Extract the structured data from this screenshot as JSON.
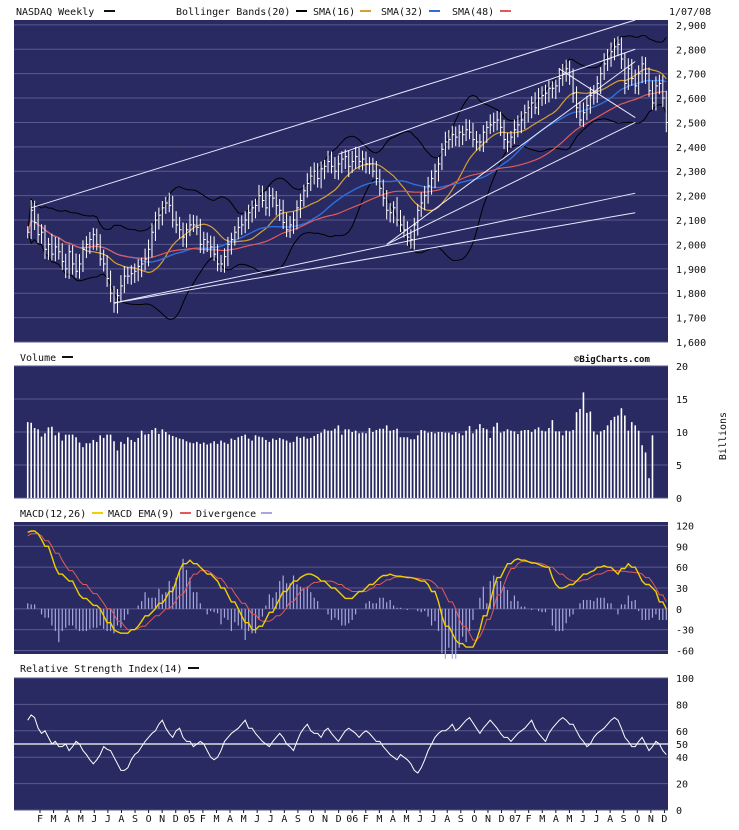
{
  "colors": {
    "panel_bg": "#2a2a62",
    "bg": "#ffffff",
    "grid": "#5a5a8e",
    "bars": "#ffffff",
    "sma16": "#000000",
    "sma32": "#d4a033",
    "sma48": "#2f6fdc",
    "bb": "#000000",
    "macd": "#f0d000",
    "macd_ema": "#e05a5a",
    "divergence": "#a8a8e0",
    "trend": "#e8e8ff"
  },
  "header": {
    "title": "NASDAQ Weekly",
    "bollinger": "Bollinger Bands(20)",
    "sma16": "SMA(16)",
    "sma32": "SMA(32)",
    "sma48": "SMA(48)",
    "date": "1/07/08"
  },
  "volume_panel": {
    "title": "Volume",
    "brand": "©BigCharts.com",
    "unit": "Billions"
  },
  "macd_panel": {
    "title": "MACD(12,26)",
    "ema": "MACD EMA(9)",
    "divergence": "Divergence"
  },
  "rsi_panel": {
    "title": "Relative Strength Index(14)"
  },
  "x_labels": [
    "F",
    "M",
    "A",
    "M",
    "J",
    "J",
    "A",
    "S",
    "O",
    "N",
    "D",
    "05",
    "F",
    "M",
    "A",
    "M",
    "J",
    "J",
    "A",
    "S",
    "O",
    "N",
    "D",
    "06",
    "F",
    "M",
    "A",
    "M",
    "J",
    "J",
    "A",
    "S",
    "O",
    "N",
    "D",
    "07",
    "F",
    "M",
    "A",
    "M",
    "J",
    "J",
    "A",
    "S",
    "O",
    "N",
    "D"
  ],
  "chart_data": [
    {
      "type": "ohlc",
      "title": "NASDAQ Weekly",
      "y_ticks": [
        "1,600",
        "1,700",
        "1,800",
        "1,900",
        "2,000",
        "2,100",
        "2,200",
        "2,300",
        "2,400",
        "2,500",
        "2,600",
        "2,700",
        "2,800",
        "2,900"
      ],
      "ylim": [
        1600,
        2920
      ],
      "closes": [
        2050,
        2140,
        2090,
        2040,
        2050,
        1980,
        2000,
        1960,
        1990,
        1970,
        1930,
        1900,
        1970,
        1920,
        1890,
        1920,
        1980,
        2000,
        2020,
        2040,
        2000,
        1940,
        1920,
        1860,
        1800,
        1760,
        1790,
        1830,
        1870,
        1870,
        1880,
        1890,
        1910,
        1920,
        1940,
        1980,
        2050,
        2100,
        2120,
        2150,
        2170,
        2160,
        2100,
        2080,
        2060,
        2030,
        2060,
        2080,
        2080,
        2070,
        2000,
        2020,
        2010,
        1990,
        1960,
        1920,
        1920,
        1950,
        2000,
        2020,
        2050,
        2070,
        2080,
        2100,
        2130,
        2150,
        2160,
        2200,
        2180,
        2150,
        2200,
        2190,
        2160,
        2140,
        2090,
        2060,
        2080,
        2100,
        2150,
        2180,
        2220,
        2250,
        2280,
        2300,
        2270,
        2310,
        2320,
        2340,
        2320,
        2300,
        2330,
        2350,
        2360,
        2320,
        2340,
        2360,
        2340,
        2350,
        2330,
        2330,
        2300,
        2270,
        2230,
        2190,
        2140,
        2130,
        2150,
        2100,
        2080,
        2060,
        2030,
        2020,
        2080,
        2140,
        2170,
        2200,
        2240,
        2270,
        2300,
        2330,
        2390,
        2420,
        2430,
        2450,
        2440,
        2460,
        2450,
        2470,
        2460,
        2430,
        2420,
        2420,
        2460,
        2480,
        2490,
        2500,
        2510,
        2480,
        2430,
        2420,
        2440,
        2470,
        2490,
        2510,
        2540,
        2560,
        2580,
        2560,
        2600,
        2610,
        2620,
        2640,
        2640,
        2650,
        2680,
        2700,
        2720,
        2690,
        2620,
        2560,
        2510,
        2540,
        2570,
        2610,
        2620,
        2660,
        2700,
        2740,
        2760,
        2790,
        2810,
        2820,
        2760,
        2660,
        2720,
        2680,
        2650,
        2700,
        2740,
        2700,
        2630,
        2580,
        2650,
        2660,
        2600,
        2500
      ],
      "y_axis_side": "right"
    },
    {
      "type": "bar",
      "title": "Volume",
      "y_ticks": [
        "0",
        "5",
        "10",
        "15",
        "20"
      ],
      "ylim": [
        0,
        20
      ],
      "unit": "Billions",
      "values": [
        11.5,
        11.4,
        10.6,
        10.4,
        9.3,
        9.8,
        10.7,
        10.8,
        9.5,
        9.9,
        8.7,
        9.6,
        9.6,
        9.6,
        9.2,
        8.4,
        7.7,
        8.3,
        8.3,
        8.8,
        8.5,
        9.5,
        9.1,
        9.6,
        9.6,
        8.6,
        7.2,
        8.5,
        8.2,
        9.2,
        8.8,
        8.5,
        9.1,
        10.2,
        9.6,
        9.7,
        10.3,
        10.6,
        9.7,
        10.4,
        10.0,
        9.6,
        9.4,
        9.2,
        9.0,
        8.9,
        8.6,
        8.4,
        8.3,
        8.5,
        8.2,
        8.4,
        8.1,
        8.3,
        8.6,
        8.2,
        8.7,
        8.4,
        8.2,
        9.0,
        8.8,
        9.2,
        9.4,
        9.6,
        9.0,
        8.7,
        9.5,
        9.3,
        9.2,
        8.8,
        8.5,
        9.0,
        8.8,
        9.1,
        8.9,
        8.7,
        8.4,
        8.5,
        9.3,
        9.1,
        9.3,
        9.0,
        9.1,
        9.4,
        9.7,
        9.9,
        10.4,
        10.2,
        10.2,
        10.5,
        11.0,
        9.6,
        10.4,
        10.4,
        10.0,
        10.2,
        9.8,
        9.9,
        9.8,
        10.6,
        10.0,
        10.3,
        10.5,
        10.5,
        11.0,
        10.2,
        10.3,
        10.5,
        9.2,
        9.2,
        9.2,
        8.9,
        8.9,
        9.5,
        10.3,
        10.2,
        9.9,
        10.0,
        9.8,
        10.0,
        10.0,
        9.9,
        9.9,
        9.6,
        10.0,
        9.8,
        9.5,
        10.2,
        10.9,
        9.8,
        10.4,
        11.2,
        10.6,
        10.4,
        9.1,
        10.8,
        11.4,
        9.9,
        10.1,
        10.4,
        10.2,
        10.1,
        9.7,
        10.2,
        10.3,
        10.3,
        10.0,
        10.4,
        10.7,
        10.2,
        10.1,
        10.6,
        11.8,
        10.1,
        10.1,
        9.5,
        10.2,
        10.1,
        10.3,
        13.0,
        13.5,
        16.0,
        12.9,
        13.1,
        10.1,
        9.6,
        10.1,
        10.3,
        11.0,
        11.8,
        12.3,
        12.5,
        13.6,
        12.5,
        10.2,
        11.5,
        11.0,
        10.2,
        8.0,
        6.9,
        3.0,
        9.5
      ],
      "y_axis_side": "right"
    },
    {
      "type": "line",
      "title": "MACD(12,26)",
      "series": [
        {
          "name": "MACD EMA(9)"
        },
        {
          "name": "Divergence"
        }
      ],
      "y_ticks": [
        "-60",
        "-30",
        "0",
        "30",
        "60",
        "90",
        "120"
      ],
      "ylim": [
        -65,
        125
      ],
      "macd": [
        110,
        112,
        108,
        100,
        90,
        75,
        60,
        50,
        45,
        40,
        30,
        20,
        15,
        10,
        5,
        0,
        -10,
        -20,
        -30,
        -33,
        -35,
        -35,
        -30,
        -25,
        -18,
        -10,
        -5,
        0,
        8,
        15,
        25,
        40,
        55,
        65,
        70,
        65,
        60,
        55,
        50,
        45,
        40,
        30,
        20,
        10,
        0,
        -10,
        -20,
        -30,
        -30,
        -25,
        -15,
        -5,
        5,
        15,
        25,
        33,
        40,
        45,
        48,
        50,
        48,
        45,
        40,
        35,
        30,
        25,
        20,
        15,
        15,
        20,
        25,
        30,
        35,
        40,
        45,
        48,
        50,
        48,
        47,
        46,
        45,
        44,
        42,
        40,
        35,
        25,
        10,
        -10,
        -25,
        -35,
        -45,
        -50,
        -55,
        -55,
        -45,
        -30,
        -10,
        10,
        30,
        45,
        55,
        65,
        70,
        72,
        70,
        68,
        66,
        64,
        62,
        60,
        45,
        35,
        30,
        32,
        35,
        40,
        45,
        50,
        53,
        55,
        60,
        62,
        60,
        55,
        50,
        58,
        65,
        60,
        50,
        40,
        35,
        30,
        25,
        10,
        0
      ],
      "macd_ema": [
        105,
        108,
        108,
        105,
        98,
        90,
        80,
        70,
        62,
        55,
        48,
        40,
        35,
        28,
        22,
        15,
        8,
        0,
        -8,
        -18,
        -25,
        -30,
        -30,
        -28,
        -25,
        -20,
        -15,
        -10,
        -5,
        0,
        5,
        12,
        20,
        30,
        42,
        50,
        55,
        55,
        52,
        48,
        44,
        38,
        30,
        22,
        15,
        8,
        0,
        -8,
        -15,
        -18,
        -18,
        -15,
        -10,
        -5,
        2,
        10,
        18,
        25,
        30,
        35,
        38,
        40,
        40,
        40,
        38,
        35,
        30,
        28,
        25,
        25,
        25,
        28,
        30,
        35,
        38,
        42,
        45,
        46,
        46,
        46,
        45,
        44,
        43,
        42,
        40,
        36,
        30,
        20,
        10,
        0,
        -15,
        -25,
        -35,
        -45,
        -40,
        -30,
        -15,
        0,
        20,
        35,
        48,
        58,
        65,
        68,
        68,
        67,
        66,
        65,
        63,
        60,
        55,
        50,
        45,
        42,
        40,
        40,
        42,
        45,
        48,
        50,
        52,
        55,
        55,
        55,
        54,
        53,
        53,
        52,
        50,
        45,
        38,
        30,
        20,
        10
      ]
    },
    {
      "type": "line",
      "title": "Relative Strength Index(14)",
      "y_ticks": [
        "0",
        "20",
        "40",
        "50",
        "60",
        "80",
        "100"
      ],
      "ylim": [
        0,
        100
      ],
      "reference_level": 50,
      "values": [
        68,
        72,
        70,
        62,
        58,
        60,
        55,
        50,
        52,
        48,
        50,
        45,
        48,
        52,
        50,
        45,
        42,
        38,
        35,
        38,
        42,
        48,
        46,
        45,
        40,
        35,
        30,
        32,
        38,
        42,
        44,
        48,
        52,
        55,
        58,
        60,
        65,
        68,
        62,
        58,
        55,
        60,
        62,
        55,
        52,
        48,
        50,
        52,
        50,
        45,
        40,
        38,
        40,
        45,
        52,
        55,
        58,
        60,
        62,
        65,
        68,
        62,
        58,
        55,
        52,
        50,
        48,
        52,
        55,
        58,
        55,
        50,
        48,
        45,
        52,
        58,
        62,
        65,
        60,
        58,
        55,
        60,
        62,
        58,
        55,
        52,
        56,
        60,
        62,
        60,
        58,
        55,
        58,
        60,
        58,
        55,
        52,
        48,
        45,
        42,
        40,
        38,
        42,
        40,
        38,
        35,
        30,
        28,
        32,
        38,
        45,
        50,
        55,
        58,
        60,
        62,
        65,
        60,
        62,
        65,
        68,
        70,
        66,
        62,
        58,
        62,
        65,
        68,
        65,
        62,
        58,
        55,
        52,
        55,
        58,
        60,
        62,
        65,
        68,
        62,
        58,
        55,
        52,
        58,
        62,
        65,
        68,
        70,
        68,
        65,
        60,
        55,
        52,
        48,
        50,
        55,
        58,
        60,
        62,
        65,
        68,
        70,
        68,
        62,
        55,
        52,
        48,
        52,
        55,
        50,
        45,
        48,
        52,
        50,
        45,
        42
      ]
    }
  ]
}
